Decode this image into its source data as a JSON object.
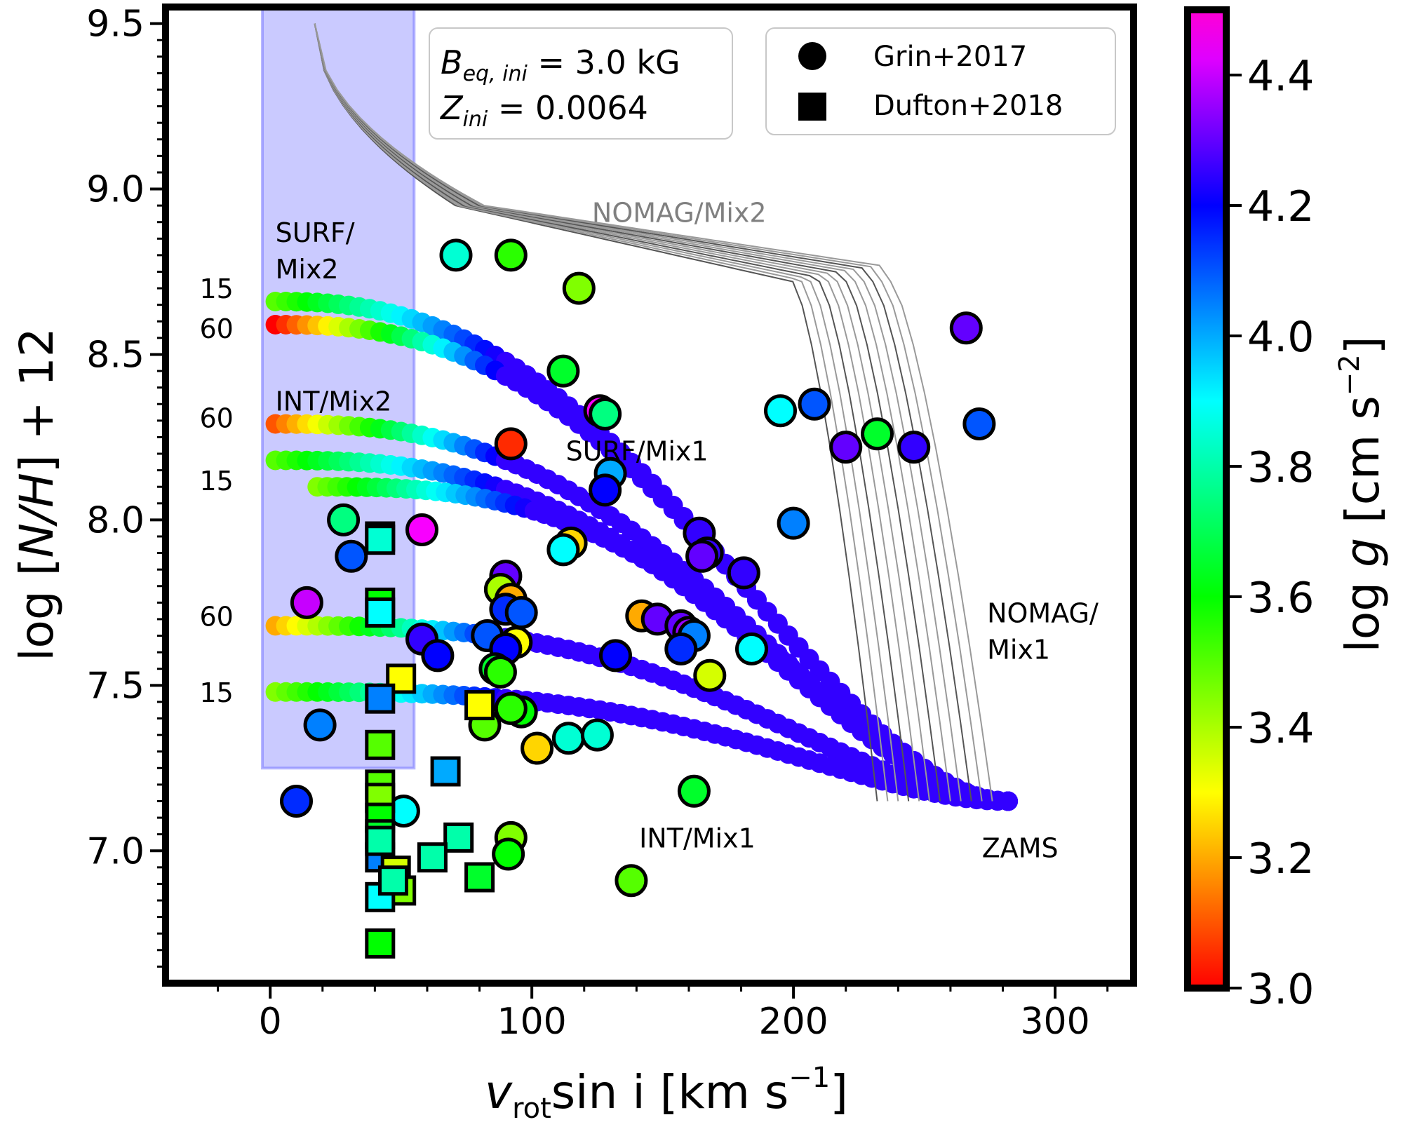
{
  "chart_data": {
    "type": "scatter",
    "xlabel": "v_rot sin i [km s^-1]",
    "xlabel_parts": {
      "v": "v",
      "sub": "rot",
      "rest": "sin i [km s",
      "sup": "−1",
      "close": "]"
    },
    "ylabel": "log [N/H] + 12",
    "ylabel_parts": {
      "pre": "log [",
      "ital": "N/H",
      "post": "] + 12"
    },
    "colorbar_label": "log g [cm s^-2]",
    "colorbar_parts": {
      "pre": "log ",
      "ital": "g",
      "mid": " [cm s",
      "sup": "−2",
      "post": "]"
    },
    "xlim": [
      -40,
      330
    ],
    "ylim": [
      6.6,
      9.55
    ],
    "clim": [
      3.0,
      4.5
    ],
    "xticks": [
      0,
      100,
      200,
      300
    ],
    "xtick_labels": [
      "0",
      "100",
      "200",
      "300"
    ],
    "yticks": [
      7.0,
      7.5,
      8.0,
      8.5,
      9.0,
      9.5
    ],
    "ytick_labels": [
      "7.0",
      "7.5",
      "8.0",
      "8.5",
      "9.0",
      "9.5"
    ],
    "cticks": [
      3.0,
      3.2,
      3.4,
      3.6,
      3.8,
      4.0,
      4.2,
      4.4
    ],
    "ctick_labels": [
      "3.0",
      "3.2",
      "3.4",
      "3.6",
      "3.8",
      "4.0",
      "4.2",
      "4.4"
    ],
    "shaded_region": {
      "x": [
        -3,
        55
      ],
      "y": [
        7.25,
        9.55
      ],
      "color": "#8080ff"
    },
    "textbox": {
      "b_label": "B",
      "b_sub": "eq, ini",
      "b_value": " =  3.0 kG",
      "z_label": "Z",
      "z_sub": "ini",
      "z_value": " =  0.0064"
    },
    "legend": [
      {
        "marker": "circle",
        "label": "Grin+2017"
      },
      {
        "marker": "square",
        "label": "Dufton+2018"
      }
    ],
    "annotations": [
      {
        "text": "SURF/",
        "x": 2,
        "y": 8.84
      },
      {
        "text": "Mix2",
        "x": 2,
        "y": 8.73
      },
      {
        "text": "15",
        "x": -27,
        "y": 8.67
      },
      {
        "text": "60",
        "x": -27,
        "y": 8.55
      },
      {
        "text": "INT/Mix2",
        "x": 2,
        "y": 8.33
      },
      {
        "text": "60",
        "x": -27,
        "y": 8.28
      },
      {
        "text": "15",
        "x": -27,
        "y": 8.09
      },
      {
        "text": "60",
        "x": -27,
        "y": 7.68
      },
      {
        "text": "15",
        "x": -27,
        "y": 7.45
      },
      {
        "text": "SURF/Mix1",
        "x": 113,
        "y": 8.18
      },
      {
        "text": "NOMAG/Mix2",
        "x": 123,
        "y": 8.9
      },
      {
        "text": "NOMAG/",
        "x": 274,
        "y": 7.69
      },
      {
        "text": "Mix1",
        "x": 274,
        "y": 7.58
      },
      {
        "text": "INT/Mix1",
        "x": 141,
        "y": 7.01
      },
      {
        "text": "ZAMS",
        "x": 272,
        "y": 6.98
      }
    ],
    "series": [
      {
        "name": "Grin+2017",
        "marker": "circle",
        "x": [
          71,
          92,
          118,
          112,
          126,
          128,
          92,
          130,
          128,
          115,
          112,
          28,
          31,
          58,
          14,
          90,
          88,
          92,
          90,
          96,
          83,
          94,
          90,
          58,
          64,
          86,
          88,
          102,
          82,
          96,
          92,
          114,
          125,
          164,
          167,
          181,
          165,
          142,
          148,
          157,
          160,
          162,
          157,
          168,
          184,
          132,
          195,
          200,
          208,
          220,
          232,
          246,
          266,
          271,
          19,
          10,
          51,
          162,
          138,
          92,
          91
        ],
        "y": [
          8.8,
          8.8,
          8.7,
          8.45,
          8.33,
          8.32,
          8.23,
          8.14,
          8.09,
          7.93,
          7.91,
          8.0,
          7.89,
          7.97,
          7.75,
          7.83,
          7.79,
          7.76,
          7.73,
          7.72,
          7.65,
          7.63,
          7.61,
          7.64,
          7.59,
          7.55,
          7.54,
          7.31,
          7.38,
          7.42,
          7.43,
          7.34,
          7.35,
          7.96,
          7.9,
          7.84,
          7.89,
          7.71,
          7.7,
          7.68,
          7.66,
          7.65,
          7.61,
          7.53,
          7.61,
          7.59,
          8.33,
          7.99,
          8.35,
          8.22,
          8.26,
          8.22,
          8.58,
          8.29,
          7.38,
          7.15,
          7.12,
          7.18,
          6.91,
          7.04,
          6.99
        ],
        "logg": [
          3.85,
          3.55,
          3.45,
          3.65,
          4.45,
          3.75,
          3.05,
          4.0,
          4.2,
          3.25,
          3.9,
          3.75,
          4.1,
          4.45,
          4.4,
          4.3,
          3.4,
          3.2,
          4.15,
          4.1,
          4.1,
          3.3,
          4.2,
          4.25,
          4.2,
          3.65,
          3.55,
          3.25,
          3.5,
          3.6,
          3.55,
          3.85,
          3.85,
          4.25,
          4.25,
          4.25,
          4.3,
          3.2,
          4.3,
          4.3,
          4.35,
          4.05,
          4.15,
          3.35,
          3.9,
          4.2,
          3.9,
          4.05,
          4.1,
          4.3,
          3.65,
          4.25,
          4.3,
          4.1,
          4.05,
          4.15,
          3.9,
          3.65,
          3.5,
          3.45,
          3.6
        ]
      },
      {
        "name": "Dufton+2018",
        "marker": "square",
        "x": [
          42,
          42,
          42,
          42,
          50,
          42,
          80,
          42,
          42,
          42,
          42,
          42,
          42,
          67,
          42,
          72,
          62,
          48,
          50,
          42,
          47,
          80,
          42
        ],
        "y": [
          7.95,
          7.94,
          7.75,
          7.72,
          7.52,
          7.46,
          7.44,
          7.32,
          7.2,
          7.16,
          7.1,
          7.05,
          6.98,
          7.24,
          7.03,
          7.04,
          6.98,
          6.94,
          6.88,
          6.86,
          6.91,
          6.92,
          6.72
        ],
        "logg": [
          4.15,
          3.85,
          3.6,
          3.9,
          3.3,
          4.05,
          3.3,
          3.5,
          3.5,
          3.45,
          3.6,
          3.65,
          4.05,
          4.0,
          3.8,
          3.8,
          3.8,
          3.35,
          3.45,
          3.9,
          3.8,
          3.65,
          3.6
        ]
      }
    ],
    "model_tracks": [
      {
        "name": "SURF/Mix2 15",
        "v0": 2,
        "n0": 8.66,
        "logg0": 3.5
      },
      {
        "name": "SURF/Mix2 60",
        "v0": 2,
        "n0": 8.59,
        "logg0": 3.0
      },
      {
        "name": "INT/Mix2 60",
        "v0": 2,
        "n0": 8.29,
        "logg0": 3.1
      },
      {
        "name": "INT/Mix2 15",
        "v0": 2,
        "n0": 8.18,
        "logg0": 3.5
      },
      {
        "name": "INT/Mix2 b",
        "v0": 18,
        "n0": 8.1,
        "logg0": 3.45
      },
      {
        "name": "Mix1 60",
        "v0": 2,
        "n0": 7.68,
        "logg0": 3.2
      },
      {
        "name": "Mix1 15",
        "v0": 2,
        "n0": 7.48,
        "logg0": 3.45
      }
    ]
  }
}
